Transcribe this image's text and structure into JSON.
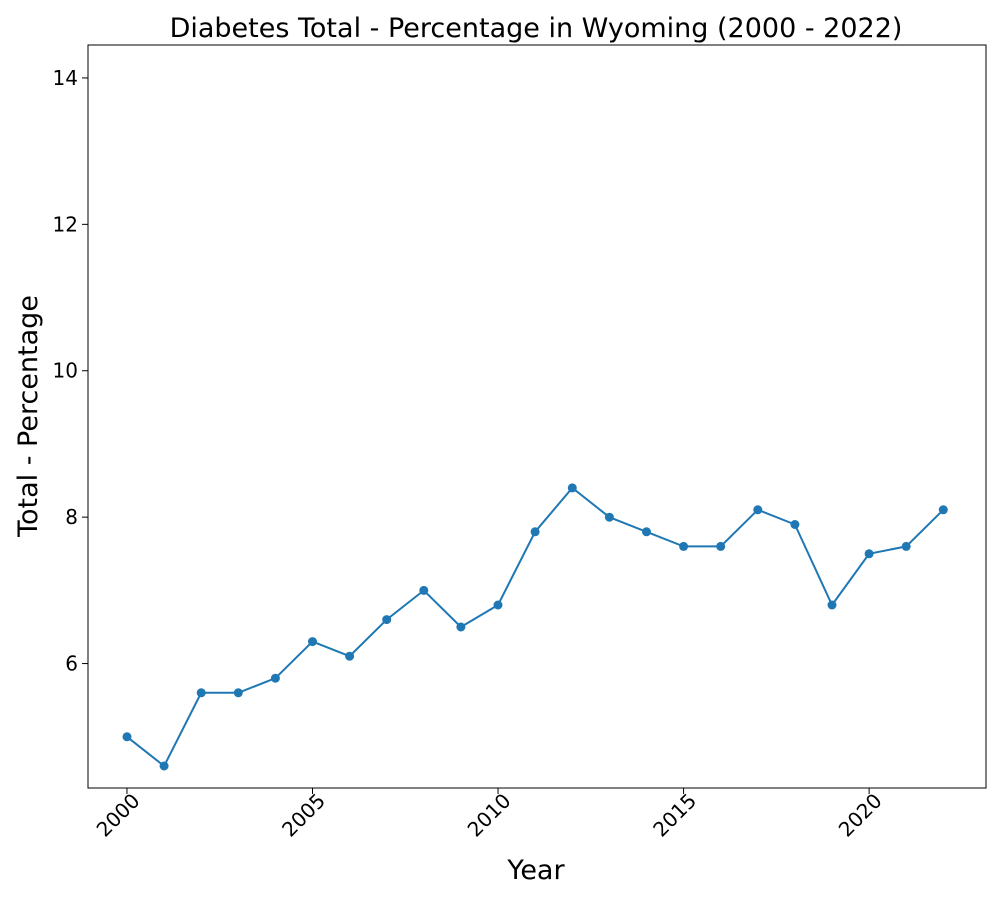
{
  "chart_data": {
    "type": "line",
    "title": "Diabetes Total - Percentage in Wyoming (2000 - 2022)",
    "xlabel": "Year",
    "ylabel": "Total - Percentage",
    "xlim": [
      1998.95,
      2023.15
    ],
    "ylim": [
      4.3,
      14.45
    ],
    "xticks": [
      2000,
      2005,
      2010,
      2015,
      2020
    ],
    "yticks": [
      6,
      8,
      10,
      12,
      14
    ],
    "grid": false,
    "series": [
      {
        "color": "#1f77b4",
        "marker": "circle",
        "x": [
          2000,
          2001,
          2002,
          2003,
          2004,
          2005,
          2006,
          2007,
          2008,
          2009,
          2010,
          2011,
          2012,
          2013,
          2014,
          2015,
          2016,
          2017,
          2018,
          2019,
          2020,
          2021,
          2022
        ],
        "values": [
          5.0,
          4.6,
          5.6,
          5.6,
          5.8,
          6.3,
          6.1,
          6.6,
          7.0,
          6.5,
          6.8,
          7.8,
          8.4,
          8.0,
          7.8,
          7.6,
          7.6,
          8.1,
          7.9,
          6.8,
          7.5,
          7.6,
          8.1
        ]
      }
    ]
  }
}
